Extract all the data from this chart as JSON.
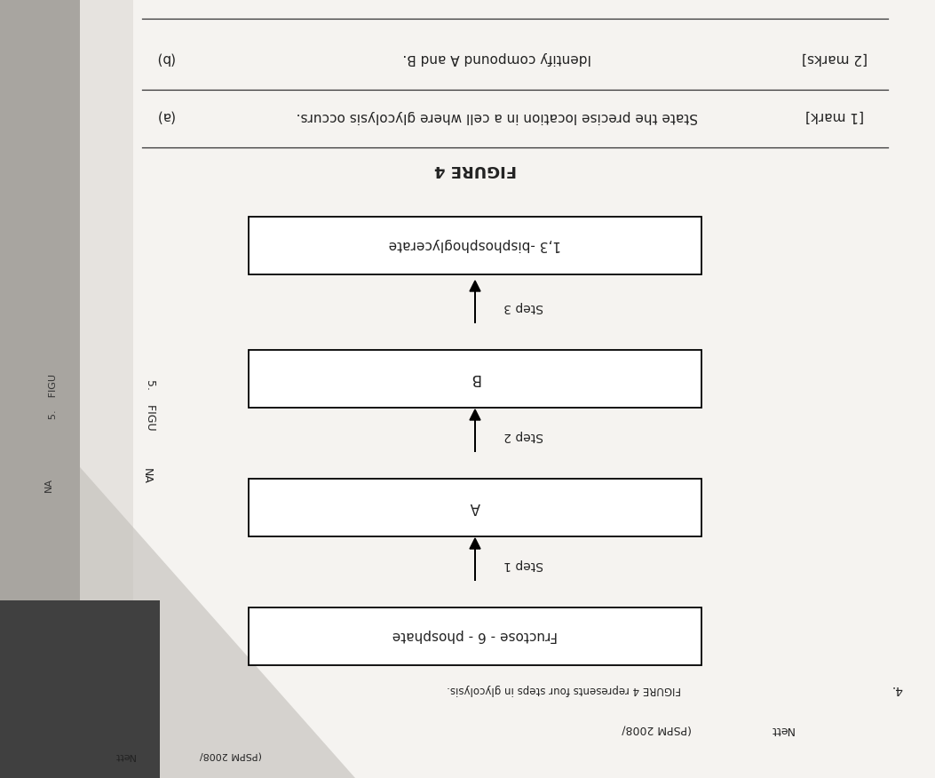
{
  "bg_color": "#c8c5c0",
  "paper_color": "#ece9e4",
  "paper_white": "#f5f3f0",
  "title": "FIGURE 4",
  "figure_label": "FIGURE 4 represents four steps in glycolysis.",
  "box_labels": [
    "Fructose - 6 - phosphate",
    "A",
    "B",
    "1,3 -bisphosphoglycerate"
  ],
  "step_labels": [
    "Step 1",
    "Step 2",
    "Step 3"
  ],
  "question_a_text": "State the precise location in a cell where glycolysis occurs.",
  "question_a_marks": "[1 mark]",
  "question_b_text": "Identify compound A and B.",
  "question_b_marks": "[2 marks]",
  "question_a_label": "(a)",
  "question_b_label": "(b)",
  "header_nett": "Nett",
  "header_pspm": "(PSPM 2008/",
  "side_text1": "5.    FIGU",
  "side_text2": "NA",
  "q_number": "4.",
  "line_color": "#333333",
  "text_color": "#222222"
}
